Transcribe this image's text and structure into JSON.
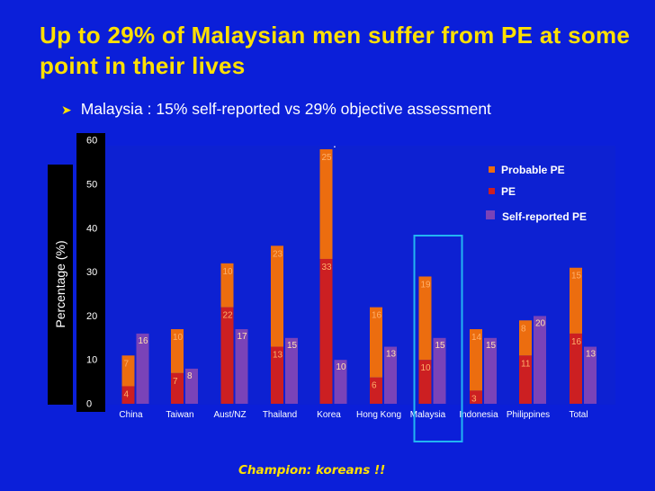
{
  "slide": {
    "title": "Up to 29% of Malaysian men suffer from PE at some point in their lives",
    "bullet": "Malaysia : 15% self-reported vs 29% objective assessment",
    "footer": "Champion: koreans !!",
    "dot": "."
  },
  "colors": {
    "background": "#0b1fd9",
    "title": "#ffe000",
    "pe": "#cc1f22",
    "probable_pe": "#ec6d0f",
    "self_reported": "#7a43b8",
    "highlight_box": "#22b5f2"
  },
  "chart_data": {
    "type": "bar",
    "stacked_groups": true,
    "categories": [
      "China",
      "Taiwan",
      "Aust/NZ",
      "Thailand",
      "Korea",
      "Hong Kong",
      "Malaysia",
      "Indonesia",
      "Philippines",
      "Total"
    ],
    "series": [
      {
        "name": "PE",
        "values": [
          4,
          7,
          22,
          13,
          33,
          6,
          10,
          3,
          11,
          16
        ],
        "stack": "objective"
      },
      {
        "name": "Probable PE",
        "values": [
          7,
          10,
          10,
          23,
          25,
          16,
          19,
          14,
          8,
          15
        ],
        "stack": "objective"
      },
      {
        "name": "Self-reported PE",
        "values": [
          16,
          8,
          17,
          15,
          10,
          13,
          15,
          15,
          20,
          13
        ],
        "stack": "self"
      }
    ],
    "ylabel": "Percentage (%)",
    "ylim": [
      0,
      60
    ],
    "yticks": [
      0,
      10,
      20,
      30,
      40,
      50,
      60
    ],
    "legend": [
      "Probable PE",
      "PE",
      "Self-reported PE"
    ],
    "legend_position": "top-right",
    "highlight_category": "Malaysia"
  }
}
